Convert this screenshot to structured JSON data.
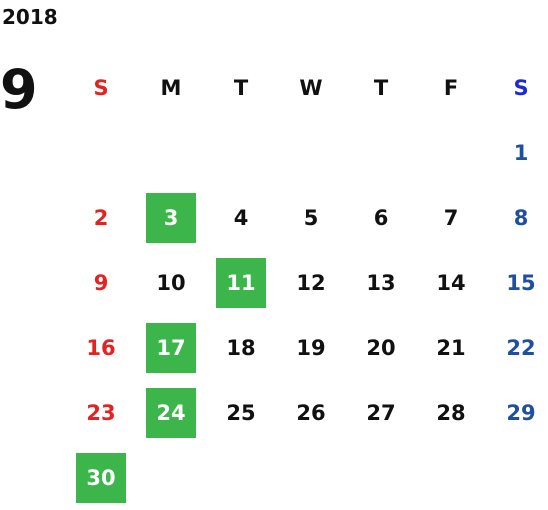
{
  "year": "2018",
  "month": "9",
  "weekdays": [
    "S",
    "M",
    "T",
    "W",
    "T",
    "F",
    "S"
  ],
  "colors": {
    "sunday": "#e32222",
    "saturday": "#1f4fa0",
    "saturday_header": "#1a2bd6",
    "holiday_bg": "#3cb54a",
    "holiday_text": "#ffffff"
  },
  "weeks": [
    [
      {
        "day": ""
      },
      {
        "day": ""
      },
      {
        "day": ""
      },
      {
        "day": ""
      },
      {
        "day": ""
      },
      {
        "day": ""
      },
      {
        "day": "1"
      }
    ],
    [
      {
        "day": "2"
      },
      {
        "day": "3",
        "holiday": true
      },
      {
        "day": "4"
      },
      {
        "day": "5"
      },
      {
        "day": "6"
      },
      {
        "day": "7"
      },
      {
        "day": "8"
      }
    ],
    [
      {
        "day": "9"
      },
      {
        "day": "10"
      },
      {
        "day": "11",
        "holiday": true
      },
      {
        "day": "12"
      },
      {
        "day": "13"
      },
      {
        "day": "14"
      },
      {
        "day": "15"
      }
    ],
    [
      {
        "day": "16"
      },
      {
        "day": "17",
        "holiday": true
      },
      {
        "day": "18"
      },
      {
        "day": "19"
      },
      {
        "day": "20"
      },
      {
        "day": "21"
      },
      {
        "day": "22"
      }
    ],
    [
      {
        "day": "23"
      },
      {
        "day": "24",
        "holiday": true
      },
      {
        "day": "25"
      },
      {
        "day": "26"
      },
      {
        "day": "27"
      },
      {
        "day": "28"
      },
      {
        "day": "29"
      }
    ],
    [
      {
        "day": "30",
        "holiday": true
      },
      {
        "day": ""
      },
      {
        "day": ""
      },
      {
        "day": ""
      },
      {
        "day": ""
      },
      {
        "day": ""
      },
      {
        "day": ""
      }
    ]
  ]
}
